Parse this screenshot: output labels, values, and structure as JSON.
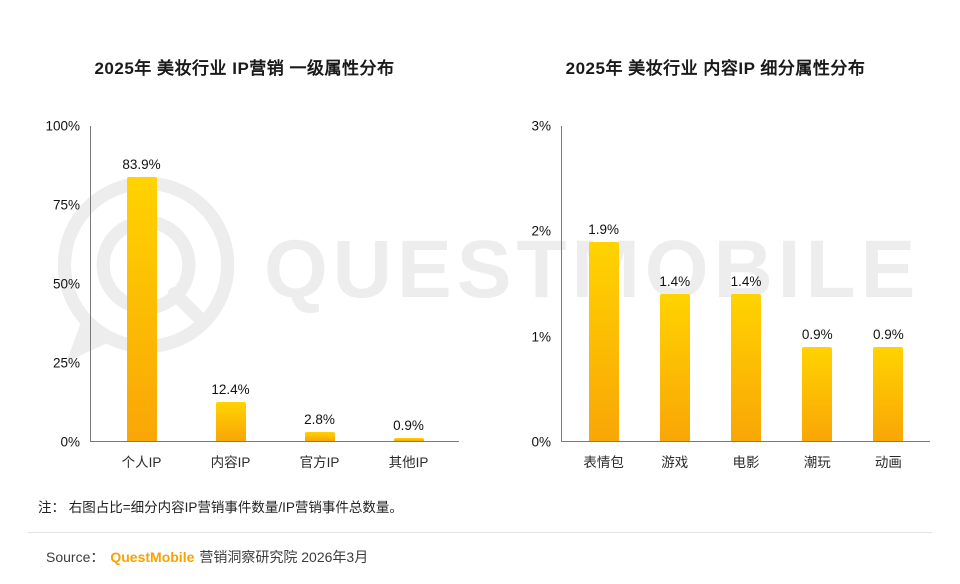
{
  "chart_data": [
    {
      "type": "bar",
      "title": "2025年 美妆行业 IP营销 一级属性分布",
      "categories": [
        "个人IP",
        "内容IP",
        "官方IP",
        "其他IP"
      ],
      "values": [
        83.9,
        12.4,
        2.8,
        0.9
      ],
      "value_labels": [
        "83.9%",
        "12.4%",
        "2.8%",
        "0.9%"
      ],
      "ylim": [
        0,
        100
      ],
      "yticks": [
        0,
        25,
        50,
        75,
        100
      ],
      "ytick_labels": [
        "0%",
        "25%",
        "50%",
        "75%",
        "100%"
      ],
      "xlabel": "",
      "ylabel": "",
      "grid": false,
      "legend": false
    },
    {
      "type": "bar",
      "title": "2025年 美妆行业 内容IP 细分属性分布",
      "categories": [
        "表情包",
        "游戏",
        "电影",
        "潮玩",
        "动画"
      ],
      "values": [
        1.9,
        1.4,
        1.4,
        0.9,
        0.9
      ],
      "value_labels": [
        "1.9%",
        "1.4%",
        "1.4%",
        "0.9%",
        "0.9%"
      ],
      "ylim": [
        0,
        3
      ],
      "yticks": [
        0,
        1,
        2,
        3
      ],
      "ytick_labels": [
        "0%",
        "1%",
        "2%",
        "3%"
      ],
      "xlabel": "",
      "ylabel": "",
      "grid": false,
      "legend": false
    }
  ],
  "note": "注： 右图占比=细分内容IP营销事件数量/IP营销事件总数量。",
  "source": {
    "prefix": "Source：",
    "brand": "QuestMobile",
    "suffix": "营销洞察研究院 2026年3月"
  },
  "watermark_text": "QUESTMOBILE",
  "colors": {
    "bar_gradient_top": "#FFD300",
    "bar_gradient_bottom": "#F9A606",
    "brand_orange": "#F7A300",
    "watermark_gray": "#EDEDED"
  }
}
